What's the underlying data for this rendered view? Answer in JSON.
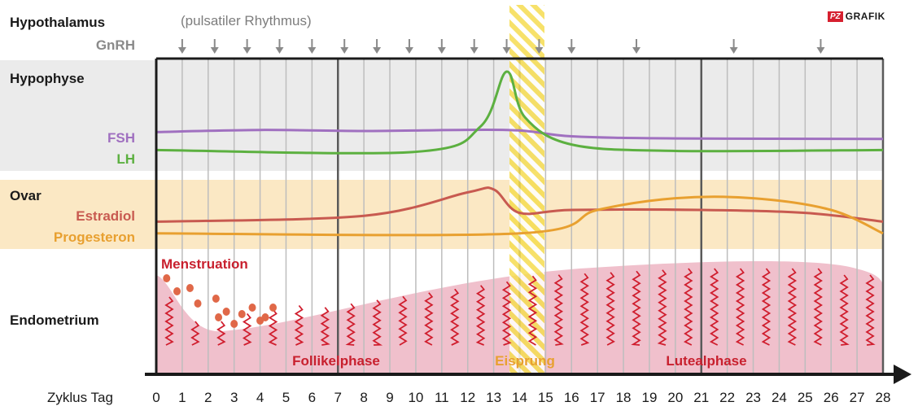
{
  "rows": {
    "hypothalamus": "Hypothalamus",
    "gnrh": "GnRH",
    "pulse_note": "(pulsatiler Rhythmus)",
    "hypophyse": "Hypophyse",
    "fsh": "FSH",
    "lh": "LH",
    "ovar": "Ovar",
    "estradiol": "Estradiol",
    "progesteron": "Progesteron",
    "menstruation": "Menstruation",
    "endometrium": "Endometrium"
  },
  "phases": {
    "follikel": "Follikelphase",
    "eisprung": "Eisprung",
    "luteal": "Lutealphase"
  },
  "axis": {
    "name": "Zyklus Tag",
    "days": [
      "0",
      "1",
      "2",
      "3",
      "4",
      "5",
      "6",
      "7",
      "8",
      "9",
      "10",
      "11",
      "12",
      "13",
      "14",
      "15",
      "16",
      "17",
      "18",
      "19",
      "20",
      "21",
      "22",
      "23",
      "24",
      "25",
      "26",
      "27",
      "28"
    ]
  },
  "logo": {
    "mark": "PZ",
    "text": "GRAFIK"
  },
  "gnrh_pulse_days": [
    1,
    2.25,
    3.5,
    4.75,
    6,
    7.25,
    8.5,
    9.75,
    11,
    12.25,
    13.5,
    14.75,
    16,
    18.5,
    22.25,
    25.6
  ],
  "colors": {
    "fsh": "#a070c0",
    "lh": "#5cb040",
    "estradiol": "#c85a50",
    "progesteron": "#e8a030",
    "endometrium": "#f0c0cc",
    "wave": "#d01e2e",
    "menstruation": "#c8202e",
    "droplet": "#e06848",
    "ovulation_stripe": "#f5dc50",
    "hypophyse_band": "#ebebeb",
    "ovar_band": "#fbe8c4"
  },
  "curves": {
    "fsh": [
      [
        0,
        0.58
      ],
      [
        4,
        0.62
      ],
      [
        8,
        0.6
      ],
      [
        13.5,
        0.62
      ],
      [
        16,
        0.5
      ],
      [
        20,
        0.46
      ],
      [
        28,
        0.45
      ]
    ],
    "lh": [
      [
        0,
        0.14
      ],
      [
        10,
        0.12
      ],
      [
        12.5,
        0.4
      ],
      [
        13.5,
        1.0
      ],
      [
        14.2,
        0.5
      ],
      [
        16,
        0.2
      ],
      [
        20,
        0.13
      ],
      [
        28,
        0.14
      ]
    ],
    "estradiol": [
      [
        0,
        0.3
      ],
      [
        8,
        0.4
      ],
      [
        12,
        0.8
      ],
      [
        13,
        0.85
      ],
      [
        14,
        0.45
      ],
      [
        16,
        0.5
      ],
      [
        21,
        0.5
      ],
      [
        25,
        0.45
      ],
      [
        28,
        0.3
      ]
    ],
    "progesteron": [
      [
        0,
        0.1
      ],
      [
        14,
        0.1
      ],
      [
        17,
        0.5
      ],
      [
        20,
        0.7
      ],
      [
        23,
        0.7
      ],
      [
        26,
        0.5
      ],
      [
        28,
        0.1
      ]
    ]
  }
}
